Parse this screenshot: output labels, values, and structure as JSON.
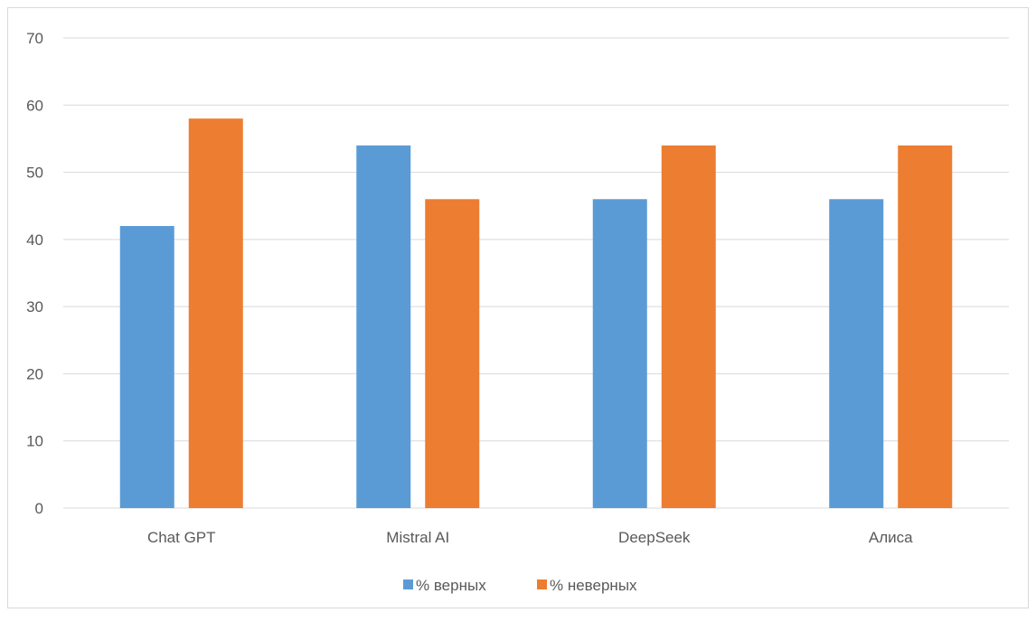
{
  "chart_data": {
    "type": "bar",
    "categories": [
      "Chat GPT",
      "Mistral AI",
      "DeepSeek",
      "Алиса"
    ],
    "series": [
      {
        "name": "% верных",
        "values": [
          42,
          54,
          46,
          46
        ],
        "color": "#5b9bd5"
      },
      {
        "name": "% неверных",
        "values": [
          58,
          46,
          54,
          54
        ],
        "color": "#ed7d31"
      }
    ],
    "ylim": [
      0,
      70
    ],
    "yticks": [
      0,
      10,
      20,
      30,
      40,
      50,
      60,
      70
    ],
    "grid": true,
    "legend_position": "bottom",
    "gridline_color": "#d9d9d9",
    "text_color": "#595959"
  }
}
